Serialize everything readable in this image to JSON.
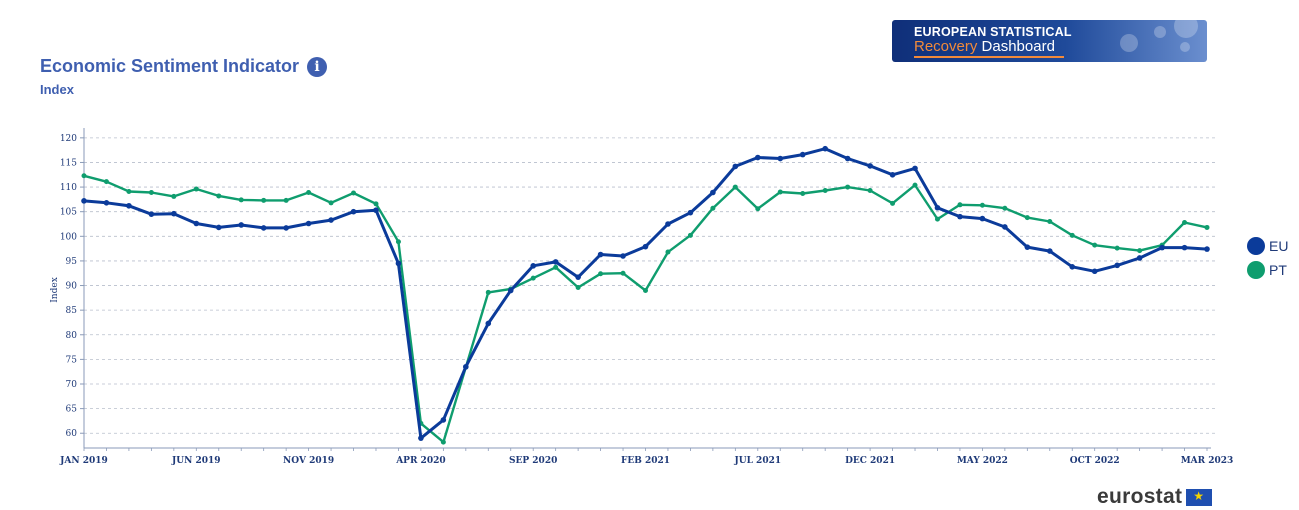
{
  "header": {
    "title": "Economic Sentiment Indicator",
    "subtitle": "Index",
    "info_icon": "info-icon"
  },
  "banner": {
    "line1": "EUROPEAN STATISTICAL",
    "line2_accent": "Recovery",
    "line2_rest": " Dashboard"
  },
  "footer": {
    "brand": "eurostat",
    "flag_icon": "eu-flag-icon"
  },
  "chart_data": {
    "type": "line",
    "title": "Economic Sentiment Indicator",
    "subtitle": "Index",
    "ylabel": "Index",
    "xlabel": "",
    "ylim": [
      57,
      122
    ],
    "yticks": [
      60,
      65,
      70,
      75,
      80,
      85,
      90,
      95,
      100,
      105,
      110,
      115,
      120
    ],
    "grid": true,
    "legend_position": "right",
    "x_tick_labels": [
      "JAN 2019",
      "JUN 2019",
      "NOV 2019",
      "APR 2020",
      "SEP 2020",
      "FEB 2021",
      "JUL 2021",
      "DEC 2021",
      "MAY 2022",
      "OCT 2022",
      "MAR 2023"
    ],
    "x_tick_indices": [
      0,
      5,
      10,
      15,
      20,
      25,
      30,
      35,
      40,
      45,
      50
    ],
    "series": [
      {
        "name": "EU",
        "color": "#0b3b9a",
        "values": [
          107.2,
          106.8,
          106.2,
          104.5,
          104.6,
          102.6,
          101.8,
          102.3,
          101.7,
          101.7,
          102.6,
          103.3,
          105.0,
          105.3,
          94.5,
          59.0,
          62.7,
          73.5,
          82.3,
          89.0,
          94.0,
          94.8,
          91.7,
          96.3,
          96.0,
          97.9,
          102.5,
          104.8,
          108.9,
          114.2,
          116.0,
          115.8,
          116.6,
          117.8,
          115.8,
          114.3,
          112.5,
          113.8,
          105.8,
          104.0,
          103.6,
          101.9,
          97.8,
          97.0,
          93.8,
          92.9,
          94.1,
          95.6,
          97.7,
          97.7,
          97.4
        ]
      },
      {
        "name": "PT",
        "color": "#0f9d6e",
        "values": [
          112.3,
          111.1,
          109.1,
          108.9,
          108.1,
          109.6,
          108.2,
          107.4,
          107.3,
          107.3,
          108.9,
          106.8,
          108.8,
          106.6,
          98.9,
          62.0,
          58.2,
          73.4,
          88.6,
          89.3,
          91.5,
          93.7,
          89.6,
          92.4,
          92.5,
          89.0,
          96.8,
          100.2,
          105.7,
          110.0,
          105.6,
          109.0,
          108.7,
          109.3,
          110.0,
          109.3,
          106.7,
          110.4,
          103.5,
          106.4,
          106.3,
          105.7,
          103.8,
          103.0,
          100.2,
          98.2,
          97.6,
          97.1,
          98.2,
          102.8,
          101.8
        ]
      }
    ]
  }
}
